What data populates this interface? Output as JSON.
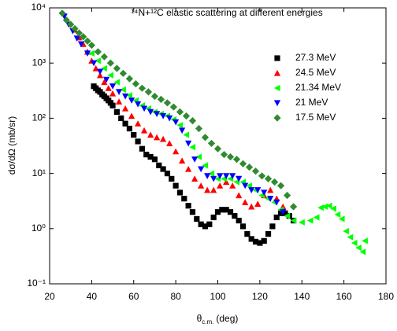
{
  "chart_data": {
    "type": "scatter",
    "title": "¹⁴N+¹²C elastic scattering at different energies",
    "x_label": {
      "symbol": "θ",
      "subscript": "c.m.",
      "unit": "(deg)"
    },
    "y_label": "dσ/dΩ (mb/sr)",
    "xlim": [
      20,
      180
    ],
    "xticks": [
      20,
      40,
      60,
      80,
      100,
      120,
      140,
      160,
      180
    ],
    "ylim": [
      0.1,
      10000
    ],
    "log_y": true,
    "yticks": [
      {
        "value": 0.1,
        "label": "10⁻¹"
      },
      {
        "value": 1,
        "label": "10⁰"
      },
      {
        "value": 10,
        "label": "10¹"
      },
      {
        "value": 100,
        "label": "10²"
      },
      {
        "value": 1000,
        "label": "10³"
      },
      {
        "value": 10000,
        "label": "10⁴"
      }
    ],
    "legend": "upper right",
    "series": [
      {
        "name": "27.3 MeV",
        "color": "#000000",
        "marker": "square",
        "x": [
          41,
          42,
          43,
          44,
          45,
          46,
          47,
          48,
          49,
          50,
          52,
          54,
          56,
          58,
          60,
          62,
          64,
          66,
          68,
          70,
          72,
          74,
          76,
          78,
          80,
          82,
          84,
          86,
          88,
          90,
          92,
          94,
          96,
          98,
          100,
          102,
          104,
          106,
          108,
          110,
          112,
          114,
          116,
          118,
          120,
          122,
          124,
          126,
          128,
          130,
          132,
          134,
          136
        ],
        "values": [
          380,
          350,
          320,
          300,
          270,
          250,
          230,
          210,
          190,
          170,
          130,
          100,
          80,
          65,
          50,
          38,
          28,
          22,
          20,
          18,
          14,
          12,
          10,
          8,
          6,
          4.5,
          3.5,
          2.6,
          2,
          1.5,
          1.2,
          1.1,
          1.2,
          1.6,
          2,
          2.2,
          2.2,
          2,
          1.7,
          1.4,
          1.1,
          0.8,
          0.65,
          0.58,
          0.55,
          0.6,
          0.8,
          1.1,
          1.6,
          1.9,
          1.9,
          1.7,
          1.4
        ]
      },
      {
        "name": "24.5 MeV",
        "color": "#ff0000",
        "marker": "triangle-up",
        "x": [
          32,
          34,
          36,
          38,
          40,
          42,
          44,
          46,
          48,
          50,
          53,
          56,
          59,
          62,
          65,
          68,
          71,
          74,
          77,
          80,
          83,
          86,
          89,
          92,
          95,
          98,
          101,
          104,
          107,
          110,
          113,
          116,
          119,
          122,
          125,
          128,
          131
        ],
        "values": [
          4000,
          2900,
          2200,
          1600,
          1100,
          800,
          600,
          450,
          350,
          280,
          200,
          150,
          110,
          80,
          60,
          50,
          45,
          42,
          35,
          25,
          17,
          12,
          8,
          6,
          5,
          5,
          6,
          7,
          6,
          4,
          3,
          2.5,
          2.8,
          4,
          5,
          3.5,
          2.5
        ]
      },
      {
        "name": "21.34 MeV",
        "color": "#00ff00",
        "marker": "triangle-left",
        "x": [
          40,
          43,
          46,
          49,
          52,
          55,
          58,
          61,
          64,
          67,
          70,
          73,
          76,
          79,
          82,
          85,
          88,
          91,
          94,
          97,
          100,
          103,
          106,
          109,
          112,
          115,
          118,
          121,
          124,
          127,
          130,
          133,
          136,
          140,
          144,
          147,
          149,
          151,
          153,
          155,
          157,
          159,
          161,
          163,
          165,
          167,
          169,
          170
        ],
        "values": [
          1500,
          1100,
          800,
          600,
          450,
          330,
          260,
          210,
          170,
          150,
          130,
          120,
          110,
          95,
          75,
          50,
          30,
          20,
          14,
          10,
          8,
          8,
          8,
          7,
          7,
          6,
          5,
          4,
          3.5,
          3,
          2.2,
          1.7,
          1.4,
          1.3,
          1.4,
          1.6,
          2.4,
          2.5,
          2.6,
          2.3,
          1.8,
          1.5,
          0.9,
          0.7,
          0.55,
          0.45,
          0.38,
          0.6
        ]
      },
      {
        "name": "21 MeV",
        "color": "#0000ff",
        "marker": "triangle-down",
        "x": [
          27,
          29,
          31,
          33,
          35,
          38,
          41,
          44,
          47,
          50,
          53,
          56,
          59,
          62,
          65,
          68,
          71,
          74,
          77,
          80,
          83,
          86,
          89,
          92,
          95,
          98,
          101,
          104,
          107,
          110,
          113,
          116,
          119,
          122,
          125,
          128,
          131
        ],
        "values": [
          7000,
          5000,
          3800,
          2800,
          2200,
          1500,
          1000,
          700,
          500,
          380,
          300,
          250,
          210,
          180,
          150,
          130,
          120,
          110,
          100,
          85,
          60,
          35,
          18,
          12,
          9,
          8,
          9,
          9,
          9,
          8,
          6,
          5,
          5,
          4.5,
          3.5,
          3,
          2
        ]
      },
      {
        "name": "17.5 MeV",
        "color": "#2e8b2e",
        "marker": "diamond",
        "x": [
          26,
          28,
          30,
          32,
          34,
          36,
          38,
          40,
          43,
          46,
          49,
          52,
          55,
          58,
          61,
          64,
          67,
          70,
          73,
          76,
          79,
          82,
          85,
          88,
          91,
          94,
          97,
          100,
          103,
          106,
          109,
          112,
          115,
          118,
          121,
          124,
          127,
          130,
          133,
          136
        ],
        "values": [
          8000,
          6000,
          5000,
          4200,
          3500,
          3000,
          2500,
          2100,
          1600,
          1300,
          1000,
          800,
          650,
          520,
          420,
          350,
          300,
          250,
          220,
          190,
          160,
          130,
          110,
          90,
          65,
          45,
          35,
          28,
          22,
          20,
          18,
          15,
          13,
          11,
          9,
          8,
          7,
          6,
          4,
          2.5
        ]
      }
    ]
  }
}
